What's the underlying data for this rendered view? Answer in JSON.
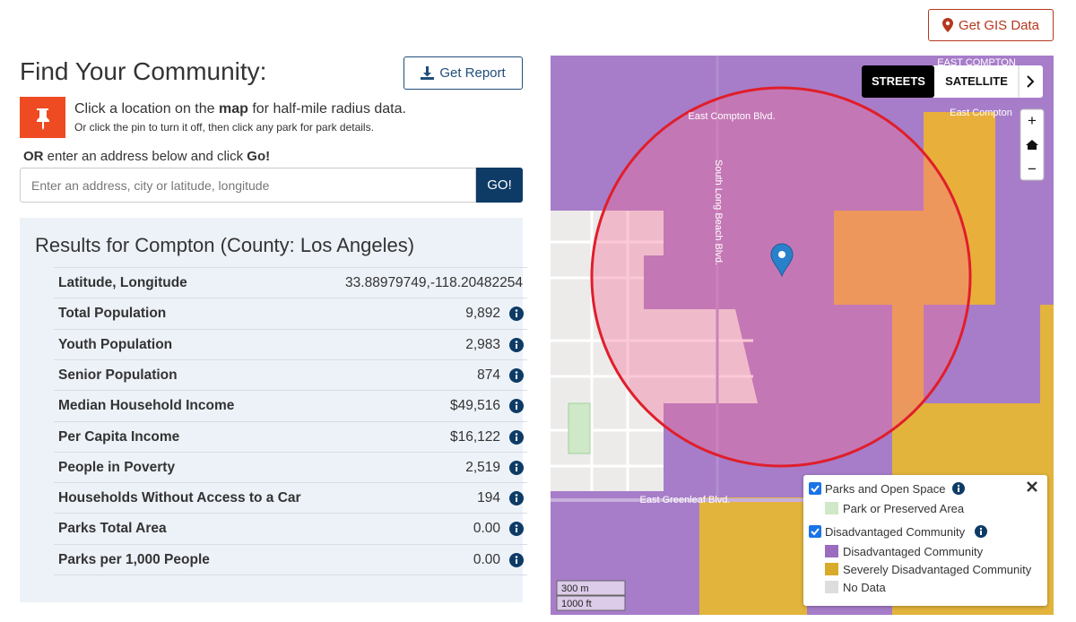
{
  "header": {
    "gis_button": "Get GIS Data"
  },
  "finder": {
    "title": "Find Your Community:",
    "report_button": "Get Report",
    "instruction_pre": "Click a location on the ",
    "instruction_bold": "map",
    "instruction_post": " for half-mile radius data.",
    "instruction_sub": "Or click the pin to turn it off, then click any park for park details.",
    "or_bold": "OR",
    "or_text": " enter an address below and click ",
    "go_bold": "Go!",
    "address_placeholder": "Enter an address, city or latitude, longitude",
    "go_button": "GO!"
  },
  "results": {
    "title": "Results for Compton (County: Los Angeles)",
    "rows": [
      [
        "Latitude, Longitude",
        "33.88979749,-118.20482254"
      ],
      [
        "Total Population",
        "9,892"
      ],
      [
        "Youth Population",
        "2,983"
      ],
      [
        "Senior Population",
        "874"
      ],
      [
        "Median Household Income",
        "$49,516"
      ],
      [
        "Per Capita Income",
        "$16,122"
      ],
      [
        "People in Poverty",
        "2,519"
      ],
      [
        "Households Without Access to a Car",
        "194"
      ],
      [
        "Parks Total Area",
        "0.00"
      ],
      [
        "Parks per 1,000 People",
        "0.00"
      ]
    ]
  },
  "map": {
    "streets": "STREETS",
    "satellite": "SATELLITE",
    "zoom_in": "+",
    "zoom_out": "−",
    "labels": [
      "EAST COMPTON",
      "East Compton Blvd.",
      "East Compton",
      "South Long Beach Blvd.",
      "East Greenleaf Blvd."
    ],
    "scale": [
      "300 m",
      "1000 ft"
    ],
    "legend": {
      "parks_group": "Parks and Open Space",
      "parks_item": "Park or Preserved Area",
      "dac_group": "Disadvantaged Community",
      "dac_items": [
        "Disadvantaged Community",
        "Severely Disadvantaged Community",
        "No Data"
      ]
    }
  }
}
